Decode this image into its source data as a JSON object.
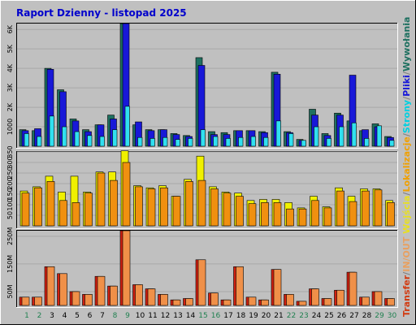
{
  "title": "Raport Dzienny -  listopad 2025",
  "right_legend": [
    {
      "text": "Transfer",
      "color": "#d23a10"
    },
    {
      "text": "/",
      "color": "#808080"
    },
    {
      "text": "IN/OUT",
      "color": "#e8a060"
    },
    {
      "text": "     ",
      "color": "#808080"
    },
    {
      "text": "Wejścia",
      "color": "#e8e020"
    },
    {
      "text": "/",
      "color": "#808080"
    },
    {
      "text": "Lokalizacje",
      "color": "#f0a000"
    },
    {
      "text": "/",
      "color": "#808080"
    },
    {
      "text": "Strony",
      "color": "#00d0e0"
    },
    {
      "text": "/",
      "color": "#808080"
    },
    {
      "text": "Pliki",
      "color": "#1818d8"
    },
    {
      "text": "/",
      "color": "#808080"
    },
    {
      "text": "Wywołania",
      "color": "#1e7060"
    }
  ],
  "colors": {
    "hits": "#1e7060",
    "files": "#1818d8",
    "pages": "#30e0f0",
    "visits": "#f0f000",
    "sites": "#f09010",
    "kbytes": "#d02010",
    "kbytes_inout": "#f09048",
    "weekend_day": "#208050",
    "weekday": "#000000"
  },
  "chart_data": [
    {
      "type": "bar",
      "name": "top",
      "categories": [
        "1",
        "2",
        "3",
        "4",
        "5",
        "6",
        "7",
        "8",
        "9",
        "10",
        "11",
        "12",
        "13",
        "14",
        "15",
        "16",
        "17",
        "18",
        "19",
        "20",
        "21",
        "22",
        "23",
        "24",
        "25",
        "26",
        "27",
        "28",
        "29",
        "30"
      ],
      "weekend": [
        1,
        2,
        8,
        9,
        15,
        16,
        22,
        23,
        29,
        30
      ],
      "ytick_labels": [
        "1000",
        "2K",
        "3K",
        "4K",
        "5K",
        "6K"
      ],
      "ytick_values": [
        1000,
        2000,
        3000,
        4000,
        5000,
        6000
      ],
      "ylim": [
        0,
        6300
      ],
      "series": [
        {
          "key": "hits",
          "values": [
            850,
            800,
            4000,
            2900,
            1400,
            850,
            1100,
            1600,
            6300,
            1100,
            850,
            850,
            650,
            550,
            4550,
            750,
            700,
            800,
            800,
            750,
            3800,
            750,
            350,
            1900,
            650,
            1700,
            1300,
            800,
            1150,
            500
          ]
        },
        {
          "key": "files",
          "values": [
            800,
            900,
            3950,
            2800,
            1300,
            750,
            1100,
            1400,
            6300,
            1250,
            800,
            850,
            600,
            500,
            4150,
            600,
            600,
            800,
            800,
            700,
            3700,
            700,
            300,
            1600,
            550,
            1600,
            3650,
            850,
            1000,
            450
          ]
        },
        {
          "key": "pages",
          "values": [
            650,
            500,
            1550,
            1000,
            750,
            550,
            500,
            850,
            2050,
            450,
            400,
            450,
            350,
            400,
            850,
            500,
            400,
            450,
            500,
            450,
            1300,
            650,
            300,
            1000,
            400,
            1000,
            1200,
            400,
            1050,
            300
          ]
        }
      ]
    },
    {
      "type": "bar",
      "name": "middle",
      "ytick_labels": [
        "50",
        "100",
        "150",
        "200",
        "250",
        "300",
        "350"
      ],
      "ytick_values": [
        50,
        100,
        150,
        200,
        250,
        300,
        350
      ],
      "ylim": [
        0,
        350
      ],
      "series": [
        {
          "key": "visits",
          "values": [
            165,
            185,
            235,
            160,
            235,
            160,
            255,
            255,
            355,
            190,
            180,
            190,
            140,
            220,
            330,
            185,
            160,
            155,
            120,
            125,
            125,
            110,
            85,
            140,
            90,
            180,
            140,
            175,
            175,
            120
          ]
        },
        {
          "key": "sites",
          "values": [
            155,
            180,
            210,
            120,
            110,
            155,
            250,
            215,
            300,
            185,
            175,
            180,
            140,
            210,
            215,
            175,
            155,
            140,
            105,
            110,
            110,
            80,
            80,
            120,
            85,
            165,
            115,
            165,
            170,
            110
          ]
        }
      ]
    },
    {
      "type": "bar",
      "name": "bottom",
      "ytick_labels": [
        "50M",
        "150M",
        "250M"
      ],
      "ytick_values": [
        50,
        150,
        250
      ],
      "ylim": [
        0,
        270
      ],
      "series": [
        {
          "key": "kbytes",
          "values": [
            30,
            30,
            140,
            115,
            50,
            40,
            105,
            70,
            270,
            75,
            60,
            40,
            20,
            25,
            165,
            45,
            20,
            140,
            30,
            20,
            130,
            40,
            15,
            60,
            25,
            55,
            120,
            30,
            50,
            25
          ]
        },
        {
          "key": "kbytes_inout",
          "values": [
            30,
            30,
            140,
            115,
            50,
            40,
            105,
            70,
            270,
            75,
            60,
            40,
            20,
            25,
            165,
            45,
            20,
            140,
            30,
            20,
            130,
            40,
            15,
            60,
            25,
            55,
            120,
            30,
            50,
            25
          ]
        }
      ]
    }
  ]
}
